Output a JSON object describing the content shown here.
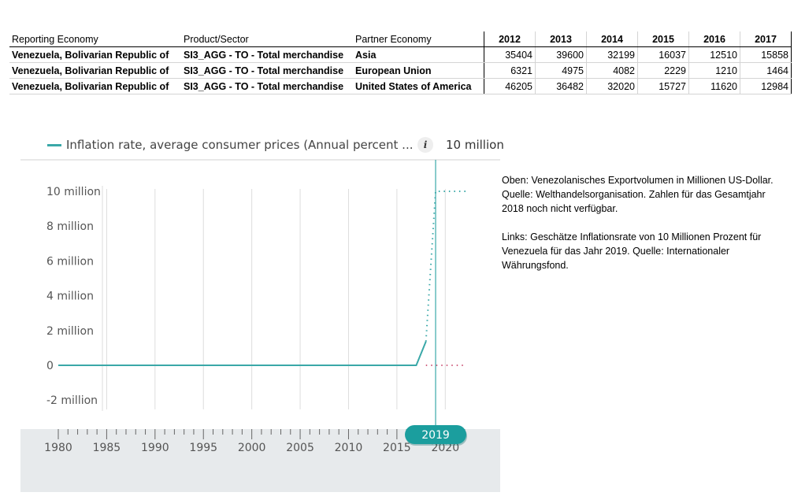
{
  "table": {
    "headers": [
      "Reporting Economy",
      "Product/Sector",
      "Partner Economy"
    ],
    "years": [
      "2012",
      "2013",
      "2014",
      "2015",
      "2016",
      "2017"
    ],
    "rows": [
      {
        "reporter": "Venezuela, Bolivarian Republic of",
        "product": "SI3_AGG - TO - Total merchandise",
        "partner": "Asia",
        "values": [
          "35404",
          "39600",
          "32199",
          "16037",
          "12510",
          "15858"
        ]
      },
      {
        "reporter": "Venezuela, Bolivarian Republic of",
        "product": "SI3_AGG - TO - Total merchandise",
        "partner": "European Union",
        "values": [
          "6321",
          "4975",
          "4082",
          "2229",
          "1210",
          "1464"
        ]
      },
      {
        "reporter": "Venezuela, Bolivarian Republic of",
        "product": "SI3_AGG - TO - Total merchandise",
        "partner": "United States of America",
        "values": [
          "46205",
          "36482",
          "32020",
          "15727",
          "11620",
          "12984"
        ]
      }
    ]
  },
  "legend": {
    "label": "Inflation rate, average consumer prices (Annual percent ...",
    "info_icon": "info-icon",
    "value": "10 million"
  },
  "annotation": {
    "top": "Oben: Venezolanisches Exportvolumen in Millionen US-Dollar. Quelle: Welthandelsorganisation. Zahlen für das Gesamtjahr 2018 noch nicht verfügbar.",
    "left": "Links: Geschätze Inflationsrate von 10 Millionen Prozent für Venezuela für das Jahr 2019. Quelle: Internationaler Währungsfond."
  },
  "chart_data": {
    "type": "line",
    "title": "Inflation rate, average consumer prices (Annual percent change)",
    "xlabel": "",
    "ylabel": "",
    "xlim": [
      1980,
      2022.5
    ],
    "ylim": [
      -2000000,
      10000000
    ],
    "y_ticks": [
      10000000,
      8000000,
      6000000,
      4000000,
      2000000,
      0,
      -2000000
    ],
    "y_tick_labels": [
      "10 million",
      "8 million",
      "6 million",
      "4 million",
      "2 million",
      "0",
      "-2 million"
    ],
    "x_ticks": [
      1980,
      1985,
      1990,
      1995,
      2000,
      2005,
      2010,
      2015,
      2020
    ],
    "x_tick_labels": [
      "1980",
      "1985",
      "1990",
      "1995",
      "2000",
      "2005",
      "2010",
      "2015",
      "2020"
    ],
    "series": [
      {
        "name": "Inflation rate, average consumer prices (Annual percent ...",
        "color": "#3aa8a8",
        "x": [
          1980,
          2017,
          2018
        ],
        "y": [
          0,
          0,
          1370000
        ],
        "projection": {
          "x": [
            2018,
            2019,
            2023
          ],
          "y": [
            1370000,
            10000000,
            10000000
          ]
        }
      },
      {
        "name": "reference",
        "color": "#d06080",
        "projection": {
          "x": [
            2018,
            2023
          ],
          "y": [
            0,
            0
          ]
        }
      }
    ],
    "highlight_year": 2019,
    "highlight_label": "2019",
    "colors": {
      "series": "#3aa8a8",
      "reference": "#d06080",
      "slider_bg": "#e7eaec",
      "grid": "#dddddd",
      "marker": "#1b9e9e"
    }
  }
}
